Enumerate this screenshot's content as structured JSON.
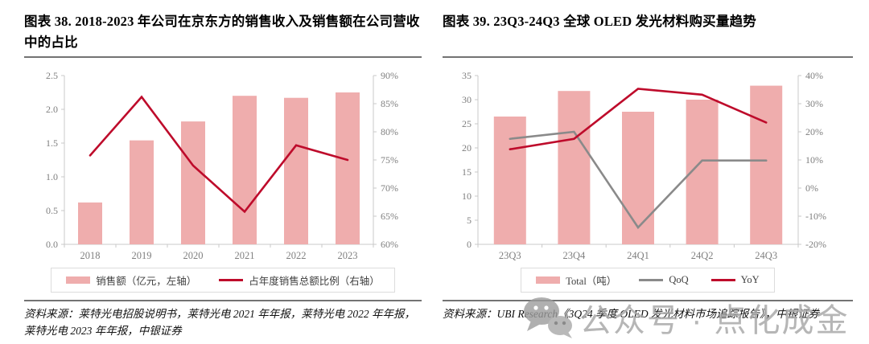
{
  "figures": [
    {
      "title": "图表 38. 2018-2023 年公司在京东方的销售收入及销售额在公司营收中的占比",
      "source": "资料来源：莱特光电招股说明书，莱特光电 2021 年年报，莱特光电 2022 年年报，莱特光电 2023 年年报，中银证券"
    },
    {
      "title": "图表 39. 23Q3-24Q3 全球 OLED 发光材料购买量趋势",
      "source": "资料来源：UBI Research《3Q24 季度 OLED 发光材料市场追踪报告》，中银证券"
    }
  ],
  "watermark": {
    "text": "公众号 · 点化成金",
    "icon": "wechat-icon"
  },
  "colors": {
    "bar": "#EFADAD",
    "red_line": "#BE0B2B",
    "gray_line": "#8A8A8A",
    "axis": "#c9c9c9",
    "tick_label": "#7f7f7f",
    "rule": "#737373"
  },
  "chart_data": [
    {
      "type": "bar",
      "title": "2018-2023 年公司在京东方的销售收入及销售额在公司营收中的占比",
      "categories": [
        "2018",
        "2019",
        "2020",
        "2021",
        "2022",
        "2023"
      ],
      "series": [
        {
          "name": "销售额（亿元，左轴）",
          "kind": "bar",
          "axis": "left",
          "color": "#EFADAD",
          "values": [
            0.62,
            1.54,
            1.82,
            2.2,
            2.17,
            2.25
          ]
        },
        {
          "name": "占年度销售总额比例（右轴）",
          "kind": "line",
          "axis": "right",
          "color": "#BE0B2B",
          "values": [
            75.8,
            86.2,
            74.0,
            65.8,
            77.6,
            75.0
          ]
        }
      ],
      "left_axis": {
        "min": 0,
        "max": 2.5,
        "step": 0.5,
        "ticks": [
          "0.0",
          "0.5",
          "1.0",
          "1.5",
          "2.0",
          "2.5"
        ]
      },
      "right_axis": {
        "min": 60,
        "max": 90,
        "step": 5,
        "ticks": [
          "60%",
          "65%",
          "70%",
          "75%",
          "80%",
          "85%",
          "90%"
        ]
      },
      "grid": false,
      "legend_position": "bottom"
    },
    {
      "type": "bar",
      "title": "23Q3-24Q3 全球 OLED 发光材料购买量趋势",
      "categories": [
        "23Q3",
        "23Q4",
        "24Q1",
        "24Q2",
        "24Q3"
      ],
      "series": [
        {
          "name": "Total（吨）",
          "kind": "bar",
          "axis": "left",
          "color": "#EFADAD",
          "values": [
            26.5,
            31.8,
            27.5,
            30.0,
            32.9
          ]
        },
        {
          "name": "QoQ",
          "kind": "line",
          "axis": "right",
          "color": "#8A8A8A",
          "values": [
            17.5,
            20.0,
            -14.0,
            9.8,
            9.8
          ]
        },
        {
          "name": "YoY",
          "kind": "line",
          "axis": "right",
          "color": "#BE0B2B",
          "values": [
            13.8,
            17.5,
            35.3,
            33.2,
            23.3
          ]
        }
      ],
      "left_axis": {
        "min": 0,
        "max": 35,
        "step": 5,
        "ticks": [
          "0",
          "5",
          "10",
          "15",
          "20",
          "25",
          "30",
          "35"
        ]
      },
      "right_axis": {
        "min": -20,
        "max": 40,
        "step": 10,
        "ticks": [
          "-20%",
          "-10%",
          "0%",
          "10%",
          "20%",
          "30%",
          "40%"
        ]
      },
      "grid": false,
      "legend_position": "bottom"
    }
  ]
}
